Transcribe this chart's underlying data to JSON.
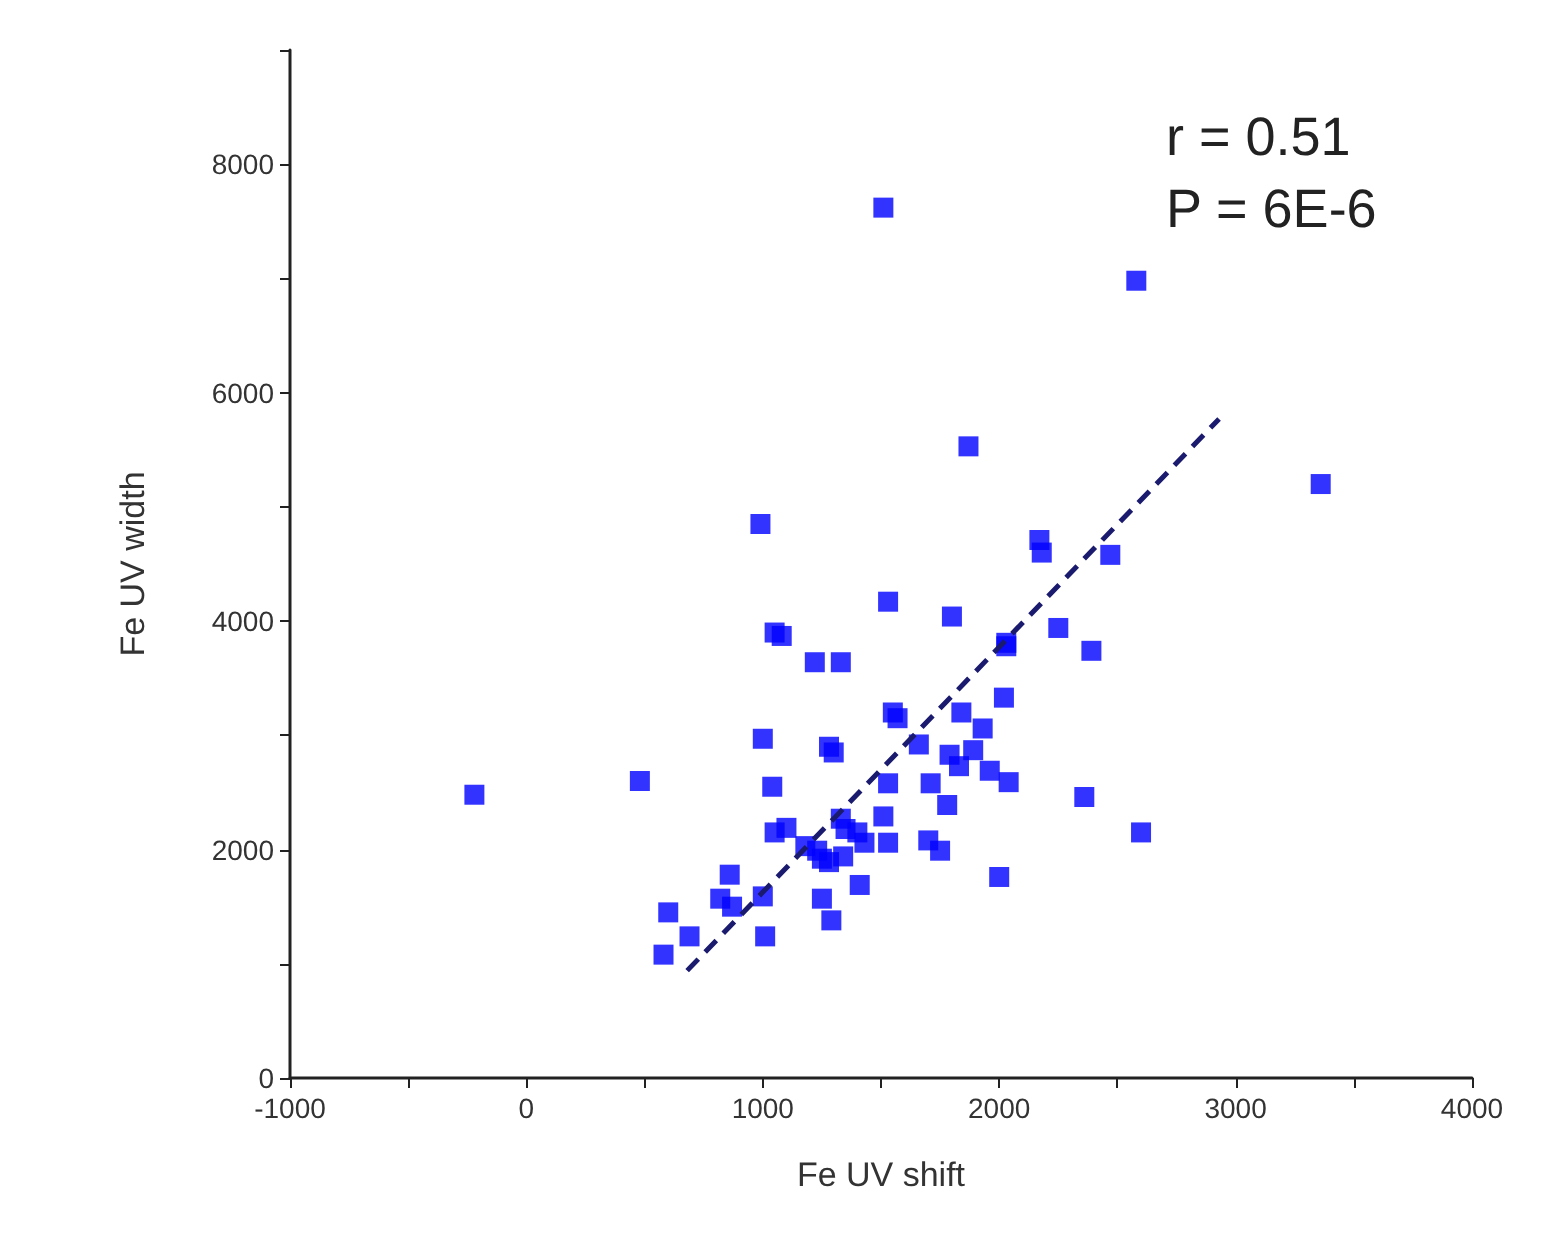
{
  "chart_data": {
    "type": "scatter",
    "xlabel": "Fe UV shift",
    "ylabel": "Fe UV width",
    "annotations": [
      "r = 0.51",
      "P = 6E-6"
    ],
    "xlim": [
      -1000,
      4000
    ],
    "xticks": [
      -1000,
      {
        "value": -500,
        "label": null
      },
      0,
      {
        "value": 500,
        "label": null
      },
      1000,
      {
        "value": 1500,
        "label": null
      },
      2000,
      {
        "value": 2500,
        "label": null
      },
      3000,
      {
        "value": 3500,
        "label": null
      },
      4000
    ],
    "ylim": [
      0,
      9000
    ],
    "yticks": [
      0,
      {
        "value": 1000,
        "label": null
      },
      2000,
      {
        "value": 3000,
        "label": null
      },
      4000,
      {
        "value": 5000,
        "label": null
      },
      6000,
      {
        "value": 7000,
        "label": null
      },
      8000,
      {
        "value": 9000,
        "label": null
      }
    ],
    "grid": false,
    "marker": "square",
    "series": [
      {
        "color": "#0000ff",
        "x": [
          -220,
          480,
          1510,
          2580,
          1870,
          3360,
          990,
          2170,
          2180,
          2470,
          1530,
          1800,
          1050,
          1080,
          1220,
          1330,
          2030,
          2030,
          2250,
          2390,
          2020,
          1550,
          1570,
          1840,
          1930,
          1000,
          1280,
          1300,
          1660,
          1790,
          1890,
          1830,
          1960,
          1040,
          1530,
          1710,
          2040,
          2360,
          1780,
          1510,
          1330,
          1100,
          1050,
          1350,
          1400,
          1430,
          1530,
          1700,
          1750,
          2600,
          1180,
          1230,
          1250,
          1340,
          1280,
          2000,
          860,
          820,
          870,
          1000,
          1250,
          1410,
          1290,
          1010,
          600,
          690,
          580
        ],
        "values": [
          2480,
          2600,
          7620,
          6980,
          5530,
          5200,
          4850,
          4710,
          4600,
          4580,
          4170,
          4040,
          3900,
          3870,
          3640,
          3640,
          3810,
          3780,
          3940,
          3740,
          3330,
          3200,
          3150,
          3200,
          3060,
          2970,
          2900,
          2850,
          2920,
          2830,
          2870,
          2730,
          2690,
          2550,
          2580,
          2580,
          2590,
          2460,
          2390,
          2290,
          2270,
          2190,
          2150,
          2180,
          2150,
          2060,
          2060,
          2080,
          1990,
          2150,
          2030,
          1990,
          1920,
          1940,
          1890,
          1760,
          1780,
          1570,
          1500,
          1590,
          1570,
          1690,
          1380,
          1240,
          1450,
          1240,
          1080
        ]
      },
      {
        "type": "line",
        "color": "#1a1a6e",
        "line_style": "dashed",
        "marker": "none",
        "x": [
          680,
          2930
        ],
        "values": [
          940,
          5770
        ]
      }
    ]
  }
}
